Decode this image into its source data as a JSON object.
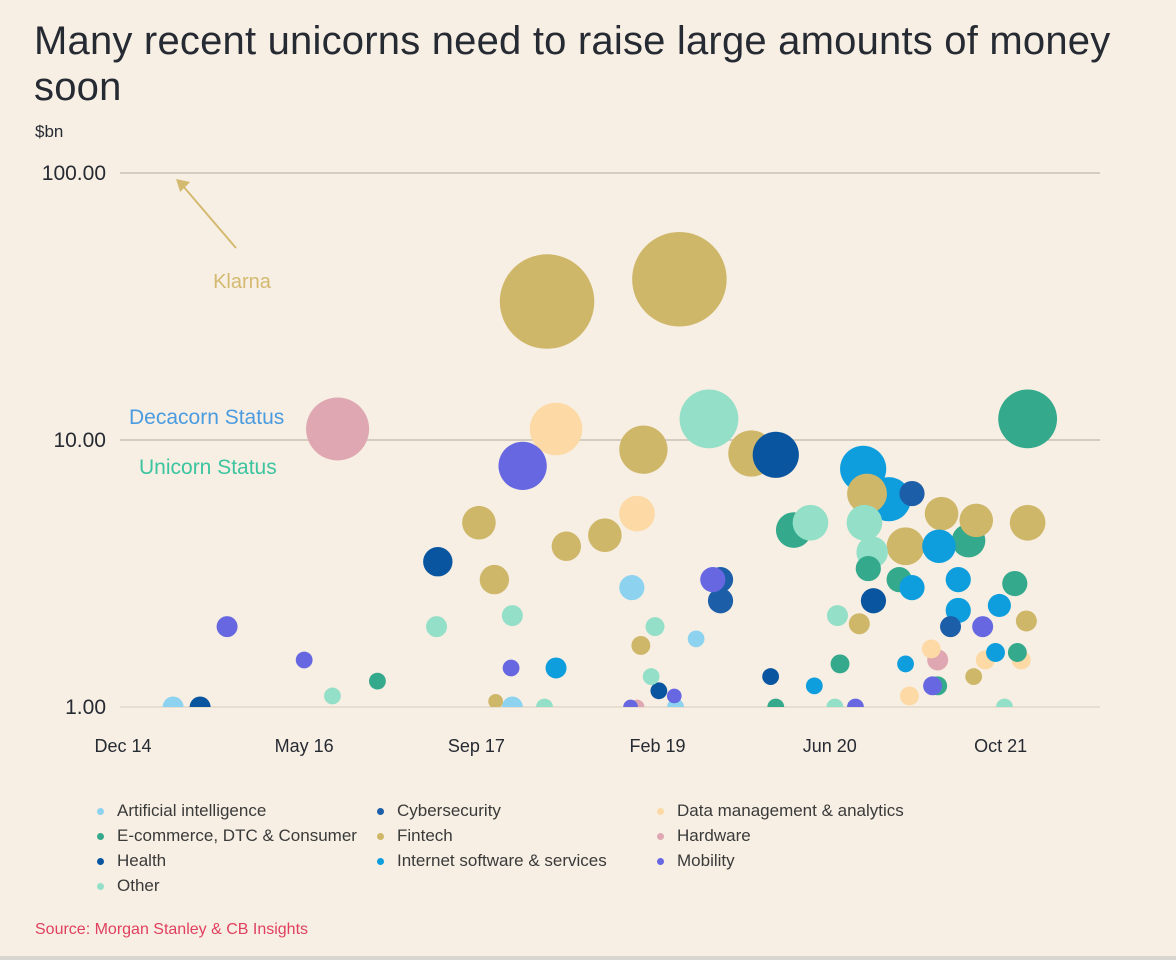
{
  "chart_data": {
    "type": "scatter",
    "title": "Many recent unicorns need to raise large amounts of money soon",
    "ylabel": "$bn",
    "xlabel": "",
    "y_scale": "log",
    "ylim": [
      1,
      100
    ],
    "xlim": [
      "2014-10",
      "2022-06"
    ],
    "y_ticks": [
      {
        "value": 100,
        "label": "100.00"
      },
      {
        "value": 10,
        "label": "10.00"
      },
      {
        "value": 1,
        "label": "1.00"
      }
    ],
    "x_ticks": [
      {
        "value": 2014.96,
        "label": "Dec 14"
      },
      {
        "value": 2016.37,
        "label": "May 16"
      },
      {
        "value": 2017.71,
        "label": "Sep 17"
      },
      {
        "value": 2019.12,
        "label": "Feb 19"
      },
      {
        "value": 2020.46,
        "label": "Jun 20"
      },
      {
        "value": 2021.79,
        "label": "Oct 21"
      }
    ],
    "grid": "horizontal",
    "annotations": [
      {
        "text": "Klarna",
        "color": "#d4b970",
        "x": 2015.8,
        "y": 30,
        "arrow_to": {
          "x": 2015.35,
          "y": 100
        }
      },
      {
        "text": "Decacorn Status",
        "color": "#4a9be0",
        "x": 2015.7,
        "y": 12
      },
      {
        "text": "Unicorn Status",
        "color": "#3cc4a0",
        "x": 2015.7,
        "y": 7.8
      }
    ],
    "legend": [
      {
        "name": "Artificial intelligence",
        "color": "#8dd3f0"
      },
      {
        "name": "Cybersecurity",
        "color": "#1d5ea8"
      },
      {
        "name": "Data management & analytics",
        "color": "#fcd9a5"
      },
      {
        "name": "E-commerce, DTC & Consumer",
        "color": "#34a98c"
      },
      {
        "name": "Fintech",
        "color": "#cfb76a"
      },
      {
        "name": "Hardware",
        "color": "#dfa7b1"
      },
      {
        "name": "Health",
        "color": "#0a55a0"
      },
      {
        "name": "Internet software & services",
        "color": "#0e9ede"
      },
      {
        "name": "Mobility",
        "color": "#6767e2"
      },
      {
        "name": "Other",
        "color": "#93dfc8"
      }
    ],
    "legend_position": "bottom",
    "series": [
      {
        "name": "Artificial intelligence",
        "points": [
          {
            "x": 2015.35,
            "y": 1.0,
            "size": 1
          },
          {
            "x": 2017.99,
            "y": 1.0,
            "size": 1
          },
          {
            "x": 2018.92,
            "y": 2.8,
            "size": 1.2
          },
          {
            "x": 2019.42,
            "y": 1.8,
            "size": 0.8
          },
          {
            "x": 2019.26,
            "y": 1.0,
            "size": 0.8
          }
        ]
      },
      {
        "name": "Cybersecurity",
        "points": [
          {
            "x": 2019.61,
            "y": 3.0,
            "size": 1.2
          },
          {
            "x": 2019.61,
            "y": 2.5,
            "size": 1.2
          },
          {
            "x": 2021.1,
            "y": 6.3,
            "size": 1.2
          },
          {
            "x": 2021.4,
            "y": 2.0,
            "size": 1.0
          }
        ]
      },
      {
        "name": "Data management & analytics",
        "points": [
          {
            "x": 2018.33,
            "y": 11.0,
            "size": 2.5
          },
          {
            "x": 2018.96,
            "y": 5.3,
            "size": 1.7
          },
          {
            "x": 2021.25,
            "y": 1.65,
            "size": 0.9
          },
          {
            "x": 2021.67,
            "y": 1.5,
            "size": 0.9
          },
          {
            "x": 2021.95,
            "y": 1.5,
            "size": 0.9
          },
          {
            "x": 2021.08,
            "y": 1.1,
            "size": 0.9
          }
        ]
      },
      {
        "name": "E-commerce, DTC & Consumer",
        "points": [
          {
            "x": 2016.94,
            "y": 1.25,
            "size": 0.8
          },
          {
            "x": 2020.18,
            "y": 4.6,
            "size": 1.7
          },
          {
            "x": 2020.54,
            "y": 1.45,
            "size": 0.9
          },
          {
            "x": 2020.76,
            "y": 3.3,
            "size": 1.2
          },
          {
            "x": 2021.0,
            "y": 3.0,
            "size": 1.2
          },
          {
            "x": 2021.54,
            "y": 4.2,
            "size": 1.6
          },
          {
            "x": 2021.9,
            "y": 2.9,
            "size": 1.2
          },
          {
            "x": 2022.0,
            "y": 12.0,
            "size": 2.8
          },
          {
            "x": 2021.92,
            "y": 1.6,
            "size": 0.9
          },
          {
            "x": 2021.3,
            "y": 1.2,
            "size": 0.9
          },
          {
            "x": 2020.04,
            "y": 1.0,
            "size": 0.8
          }
        ]
      },
      {
        "name": "Fintech",
        "points": [
          {
            "x": 2018.26,
            "y": 33.0,
            "size": 4.5
          },
          {
            "x": 2019.29,
            "y": 40.0,
            "size": 4.5
          },
          {
            "x": 2017.73,
            "y": 4.9,
            "size": 1.6
          },
          {
            "x": 2017.85,
            "y": 3.0,
            "size": 1.4
          },
          {
            "x": 2018.41,
            "y": 4.0,
            "size": 1.4
          },
          {
            "x": 2018.71,
            "y": 4.4,
            "size": 1.6
          },
          {
            "x": 2019.01,
            "y": 9.2,
            "size": 2.3
          },
          {
            "x": 2019.85,
            "y": 8.9,
            "size": 2.2
          },
          {
            "x": 2020.75,
            "y": 6.3,
            "size": 1.9
          },
          {
            "x": 2021.05,
            "y": 4.0,
            "size": 1.8
          },
          {
            "x": 2021.33,
            "y": 5.3,
            "size": 1.6
          },
          {
            "x": 2021.6,
            "y": 5.0,
            "size": 1.6
          },
          {
            "x": 2022.0,
            "y": 4.9,
            "size": 1.7
          },
          {
            "x": 2021.99,
            "y": 2.1,
            "size": 1.0
          },
          {
            "x": 2018.99,
            "y": 1.7,
            "size": 0.9
          },
          {
            "x": 2020.69,
            "y": 2.05,
            "size": 1.0
          },
          {
            "x": 2017.86,
            "y": 1.05,
            "size": 0.7
          },
          {
            "x": 2021.58,
            "y": 1.3,
            "size": 0.8
          }
        ]
      },
      {
        "name": "Hardware",
        "points": [
          {
            "x": 2016.63,
            "y": 11.0,
            "size": 3.0
          },
          {
            "x": 2021.3,
            "y": 1.5,
            "size": 1.0
          },
          {
            "x": 2018.96,
            "y": 1.0,
            "size": 0.7
          }
        ]
      },
      {
        "name": "Health",
        "points": [
          {
            "x": 2015.56,
            "y": 1.0,
            "size": 1.0
          },
          {
            "x": 2017.41,
            "y": 3.5,
            "size": 1.4
          },
          {
            "x": 2020.04,
            "y": 8.8,
            "size": 2.2
          },
          {
            "x": 2020.8,
            "y": 2.5,
            "size": 1.2
          },
          {
            "x": 2020.0,
            "y": 1.3,
            "size": 0.8
          },
          {
            "x": 2019.13,
            "y": 1.15,
            "size": 0.8
          }
        ]
      },
      {
        "name": "Internet software & services",
        "points": [
          {
            "x": 2018.33,
            "y": 1.4,
            "size": 1.0
          },
          {
            "x": 2020.72,
            "y": 7.8,
            "size": 2.2
          },
          {
            "x": 2020.92,
            "y": 6.0,
            "size": 2.1
          },
          {
            "x": 2021.31,
            "y": 4.0,
            "size": 1.6
          },
          {
            "x": 2021.46,
            "y": 3.0,
            "size": 1.2
          },
          {
            "x": 2021.46,
            "y": 2.3,
            "size": 1.2
          },
          {
            "x": 2021.78,
            "y": 2.4,
            "size": 1.1
          },
          {
            "x": 2021.1,
            "y": 2.8,
            "size": 1.2
          },
          {
            "x": 2020.34,
            "y": 1.2,
            "size": 0.8
          },
          {
            "x": 2021.05,
            "y": 1.45,
            "size": 0.8
          },
          {
            "x": 2021.75,
            "y": 1.6,
            "size": 0.9
          }
        ]
      },
      {
        "name": "Mobility",
        "points": [
          {
            "x": 2015.77,
            "y": 2.0,
            "size": 1.0
          },
          {
            "x": 2016.37,
            "y": 1.5,
            "size": 0.8
          },
          {
            "x": 2018.07,
            "y": 8.0,
            "size": 2.3
          },
          {
            "x": 2017.98,
            "y": 1.4,
            "size": 0.8
          },
          {
            "x": 2019.55,
            "y": 3.0,
            "size": 1.2
          },
          {
            "x": 2019.25,
            "y": 1.1,
            "size": 0.7
          },
          {
            "x": 2021.26,
            "y": 1.2,
            "size": 0.9
          },
          {
            "x": 2021.65,
            "y": 2.0,
            "size": 1.0
          },
          {
            "x": 2018.91,
            "y": 1.0,
            "size": 0.7
          },
          {
            "x": 2020.66,
            "y": 1.0,
            "size": 0.8
          }
        ]
      },
      {
        "name": "Other",
        "points": [
          {
            "x": 2016.59,
            "y": 1.1,
            "size": 0.8
          },
          {
            "x": 2017.4,
            "y": 2.0,
            "size": 1.0
          },
          {
            "x": 2017.99,
            "y": 2.2,
            "size": 1.0
          },
          {
            "x": 2019.1,
            "y": 2.0,
            "size": 0.9
          },
          {
            "x": 2019.07,
            "y": 1.3,
            "size": 0.8
          },
          {
            "x": 2019.52,
            "y": 12.0,
            "size": 2.8
          },
          {
            "x": 2020.31,
            "y": 4.9,
            "size": 1.7
          },
          {
            "x": 2020.73,
            "y": 4.9,
            "size": 1.7
          },
          {
            "x": 2020.79,
            "y": 3.8,
            "size": 1.5
          },
          {
            "x": 2020.52,
            "y": 2.2,
            "size": 1.0
          },
          {
            "x": 2018.24,
            "y": 1.0,
            "size": 0.8
          },
          {
            "x": 2020.5,
            "y": 1.0,
            "size": 0.8
          },
          {
            "x": 2021.82,
            "y": 1.0,
            "size": 0.8
          }
        ]
      }
    ]
  },
  "footer": {
    "source": "Source: Morgan Stanley & CB Insights"
  }
}
